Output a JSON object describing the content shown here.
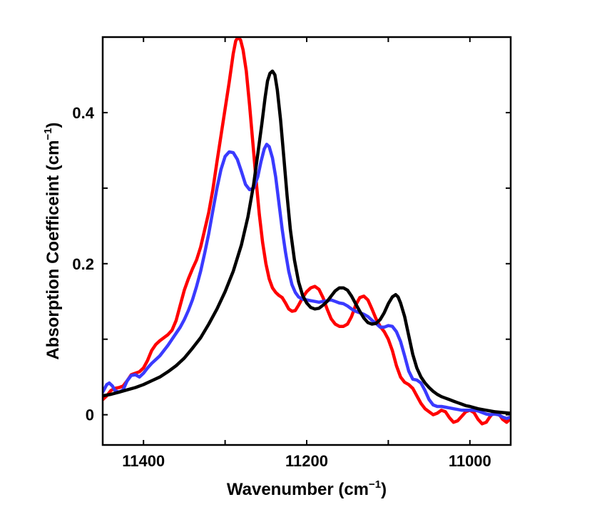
{
  "chart_data": {
    "type": "line",
    "xlabel": {
      "base": "Wavenumber (cm",
      "superscript": "−1",
      "suffix": ")"
    },
    "ylabel": {
      "base": "Absorption Coefficeint (cm",
      "superscript": "−1",
      "suffix": ")"
    },
    "xlim": [
      11450,
      10950
    ],
    "x_reversed": true,
    "ylim": [
      -0.04,
      0.5
    ],
    "xticks": [
      11400,
      11200,
      11000
    ],
    "xtick_labels": [
      "11400",
      "11200",
      "11000"
    ],
    "yticks": [
      0,
      0.2,
      0.4
    ],
    "ytick_labels": [
      "0",
      "0.2",
      "0.4"
    ],
    "minor_xticks": [
      11300,
      11100
    ],
    "minor_yticks": [
      0.1,
      0.3
    ],
    "grid": false,
    "legend": "none",
    "series": [
      {
        "name": "red",
        "color": "#ff0000",
        "points": [
          [
            11450,
            0.02
          ],
          [
            11445,
            0.025
          ],
          [
            11440,
            0.032
          ],
          [
            11435,
            0.035
          ],
          [
            11430,
            0.036
          ],
          [
            11425,
            0.038
          ],
          [
            11420,
            0.045
          ],
          [
            11415,
            0.053
          ],
          [
            11410,
            0.055
          ],
          [
            11405,
            0.057
          ],
          [
            11400,
            0.062
          ],
          [
            11395,
            0.072
          ],
          [
            11390,
            0.085
          ],
          [
            11385,
            0.093
          ],
          [
            11380,
            0.098
          ],
          [
            11375,
            0.102
          ],
          [
            11370,
            0.106
          ],
          [
            11365,
            0.112
          ],
          [
            11360,
            0.125
          ],
          [
            11355,
            0.145
          ],
          [
            11350,
            0.165
          ],
          [
            11345,
            0.18
          ],
          [
            11340,
            0.193
          ],
          [
            11335,
            0.205
          ],
          [
            11330,
            0.222
          ],
          [
            11325,
            0.245
          ],
          [
            11320,
            0.268
          ],
          [
            11315,
            0.298
          ],
          [
            11310,
            0.335
          ],
          [
            11305,
            0.37
          ],
          [
            11300,
            0.405
          ],
          [
            11295,
            0.44
          ],
          [
            11290,
            0.478
          ],
          [
            11287,
            0.495
          ],
          [
            11284,
            0.5
          ],
          [
            11281,
            0.496
          ],
          [
            11278,
            0.483
          ],
          [
            11274,
            0.455
          ],
          [
            11270,
            0.41
          ],
          [
            11266,
            0.36
          ],
          [
            11262,
            0.31
          ],
          [
            11258,
            0.265
          ],
          [
            11254,
            0.228
          ],
          [
            11250,
            0.2
          ],
          [
            11246,
            0.18
          ],
          [
            11242,
            0.168
          ],
          [
            11238,
            0.162
          ],
          [
            11234,
            0.158
          ],
          [
            11230,
            0.155
          ],
          [
            11226,
            0.148
          ],
          [
            11222,
            0.14
          ],
          [
            11218,
            0.137
          ],
          [
            11214,
            0.138
          ],
          [
            11210,
            0.145
          ],
          [
            11205,
            0.155
          ],
          [
            11200,
            0.163
          ],
          [
            11195,
            0.168
          ],
          [
            11190,
            0.17
          ],
          [
            11185,
            0.166
          ],
          [
            11180,
            0.155
          ],
          [
            11175,
            0.14
          ],
          [
            11170,
            0.127
          ],
          [
            11165,
            0.12
          ],
          [
            11160,
            0.117
          ],
          [
            11155,
            0.117
          ],
          [
            11150,
            0.12
          ],
          [
            11145,
            0.13
          ],
          [
            11140,
            0.145
          ],
          [
            11135,
            0.155
          ],
          [
            11130,
            0.157
          ],
          [
            11125,
            0.152
          ],
          [
            11120,
            0.14
          ],
          [
            11115,
            0.127
          ],
          [
            11110,
            0.117
          ],
          [
            11105,
            0.11
          ],
          [
            11100,
            0.1
          ],
          [
            11095,
            0.085
          ],
          [
            11090,
            0.065
          ],
          [
            11085,
            0.05
          ],
          [
            11080,
            0.043
          ],
          [
            11075,
            0.04
          ],
          [
            11070,
            0.035
          ],
          [
            11065,
            0.025
          ],
          [
            11060,
            0.015
          ],
          [
            11055,
            0.008
          ],
          [
            11050,
            0.004
          ],
          [
            11045,
            0.0
          ],
          [
            11040,
            0.002
          ],
          [
            11035,
            0.006
          ],
          [
            11030,
            0.004
          ],
          [
            11025,
            -0.004
          ],
          [
            11020,
            -0.01
          ],
          [
            11015,
            -0.008
          ],
          [
            11010,
            -0.002
          ],
          [
            11005,
            0.004
          ],
          [
            11000,
            0.006
          ],
          [
            10995,
            0.003
          ],
          [
            10990,
            -0.006
          ],
          [
            10985,
            -0.012
          ],
          [
            10980,
            -0.01
          ],
          [
            10975,
            -0.002
          ],
          [
            10970,
            0.004
          ],
          [
            10965,
            0.002
          ],
          [
            10960,
            -0.006
          ],
          [
            10955,
            -0.01
          ],
          [
            10950,
            -0.005
          ]
        ]
      },
      {
        "name": "blue",
        "color": "#3a3aff",
        "points": [
          [
            11450,
            0.03
          ],
          [
            11445,
            0.04
          ],
          [
            11442,
            0.042
          ],
          [
            11438,
            0.038
          ],
          [
            11435,
            0.032
          ],
          [
            11430,
            0.03
          ],
          [
            11425,
            0.033
          ],
          [
            11420,
            0.045
          ],
          [
            11415,
            0.052
          ],
          [
            11410,
            0.053
          ],
          [
            11405,
            0.05
          ],
          [
            11400,
            0.055
          ],
          [
            11395,
            0.062
          ],
          [
            11390,
            0.068
          ],
          [
            11385,
            0.073
          ],
          [
            11380,
            0.078
          ],
          [
            11375,
            0.085
          ],
          [
            11370,
            0.092
          ],
          [
            11365,
            0.1
          ],
          [
            11360,
            0.108
          ],
          [
            11355,
            0.116
          ],
          [
            11350,
            0.126
          ],
          [
            11345,
            0.138
          ],
          [
            11340,
            0.152
          ],
          [
            11335,
            0.17
          ],
          [
            11330,
            0.19
          ],
          [
            11325,
            0.214
          ],
          [
            11320,
            0.24
          ],
          [
            11315,
            0.27
          ],
          [
            11310,
            0.3
          ],
          [
            11305,
            0.325
          ],
          [
            11300,
            0.342
          ],
          [
            11295,
            0.348
          ],
          [
            11290,
            0.347
          ],
          [
            11285,
            0.338
          ],
          [
            11280,
            0.322
          ],
          [
            11275,
            0.305
          ],
          [
            11270,
            0.298
          ],
          [
            11265,
            0.3
          ],
          [
            11260,
            0.315
          ],
          [
            11256,
            0.335
          ],
          [
            11252,
            0.352
          ],
          [
            11249,
            0.358
          ],
          [
            11246,
            0.355
          ],
          [
            11242,
            0.34
          ],
          [
            11238,
            0.315
          ],
          [
            11234,
            0.28
          ],
          [
            11230,
            0.245
          ],
          [
            11226,
            0.215
          ],
          [
            11222,
            0.19
          ],
          [
            11218,
            0.172
          ],
          [
            11214,
            0.162
          ],
          [
            11210,
            0.156
          ],
          [
            11205,
            0.153
          ],
          [
            11200,
            0.152
          ],
          [
            11195,
            0.151
          ],
          [
            11190,
            0.15
          ],
          [
            11185,
            0.149
          ],
          [
            11180,
            0.15
          ],
          [
            11175,
            0.151
          ],
          [
            11170,
            0.152
          ],
          [
            11165,
            0.15
          ],
          [
            11160,
            0.148
          ],
          [
            11155,
            0.147
          ],
          [
            11150,
            0.144
          ],
          [
            11145,
            0.14
          ],
          [
            11140,
            0.137
          ],
          [
            11135,
            0.135
          ],
          [
            11130,
            0.133
          ],
          [
            11125,
            0.13
          ],
          [
            11120,
            0.125
          ],
          [
            11115,
            0.121
          ],
          [
            11110,
            0.116
          ],
          [
            11105,
            0.116
          ],
          [
            11100,
            0.118
          ],
          [
            11095,
            0.117
          ],
          [
            11090,
            0.11
          ],
          [
            11085,
            0.097
          ],
          [
            11080,
            0.078
          ],
          [
            11075,
            0.058
          ],
          [
            11070,
            0.047
          ],
          [
            11065,
            0.046
          ],
          [
            11060,
            0.042
          ],
          [
            11055,
            0.032
          ],
          [
            11050,
            0.02
          ],
          [
            11045,
            0.013
          ],
          [
            11040,
            0.011
          ],
          [
            11035,
            0.011
          ],
          [
            11030,
            0.01
          ],
          [
            11025,
            0.009
          ],
          [
            11020,
            0.008
          ],
          [
            11015,
            0.007
          ],
          [
            11010,
            0.006
          ],
          [
            11005,
            0.006
          ],
          [
            11000,
            0.006
          ],
          [
            10995,
            0.006
          ],
          [
            10990,
            0.005
          ],
          [
            10985,
            0.003
          ],
          [
            10980,
            0.001
          ],
          [
            10975,
            0.0
          ],
          [
            10970,
            0.001
          ],
          [
            10965,
            0.0
          ],
          [
            10960,
            -0.003
          ],
          [
            10955,
            -0.005
          ],
          [
            10950,
            -0.003
          ]
        ]
      },
      {
        "name": "black",
        "color": "#000000",
        "points": [
          [
            11450,
            0.025
          ],
          [
            11440,
            0.027
          ],
          [
            11430,
            0.03
          ],
          [
            11420,
            0.033
          ],
          [
            11410,
            0.036
          ],
          [
            11400,
            0.04
          ],
          [
            11390,
            0.045
          ],
          [
            11380,
            0.05
          ],
          [
            11370,
            0.057
          ],
          [
            11360,
            0.065
          ],
          [
            11350,
            0.075
          ],
          [
            11340,
            0.088
          ],
          [
            11330,
            0.102
          ],
          [
            11320,
            0.12
          ],
          [
            11310,
            0.14
          ],
          [
            11300,
            0.163
          ],
          [
            11290,
            0.19
          ],
          [
            11280,
            0.225
          ],
          [
            11272,
            0.262
          ],
          [
            11265,
            0.305
          ],
          [
            11260,
            0.345
          ],
          [
            11255,
            0.385
          ],
          [
            11251,
            0.42
          ],
          [
            11248,
            0.442
          ],
          [
            11245,
            0.452
          ],
          [
            11242,
            0.455
          ],
          [
            11239,
            0.45
          ],
          [
            11236,
            0.43
          ],
          [
            11232,
            0.39
          ],
          [
            11228,
            0.34
          ],
          [
            11224,
            0.29
          ],
          [
            11220,
            0.245
          ],
          [
            11215,
            0.205
          ],
          [
            11210,
            0.176
          ],
          [
            11205,
            0.158
          ],
          [
            11200,
            0.148
          ],
          [
            11195,
            0.142
          ],
          [
            11190,
            0.14
          ],
          [
            11185,
            0.141
          ],
          [
            11180,
            0.145
          ],
          [
            11175,
            0.15
          ],
          [
            11170,
            0.157
          ],
          [
            11165,
            0.164
          ],
          [
            11160,
            0.168
          ],
          [
            11155,
            0.168
          ],
          [
            11150,
            0.165
          ],
          [
            11145,
            0.157
          ],
          [
            11140,
            0.147
          ],
          [
            11135,
            0.137
          ],
          [
            11130,
            0.128
          ],
          [
            11125,
            0.122
          ],
          [
            11120,
            0.12
          ],
          [
            11115,
            0.121
          ],
          [
            11110,
            0.126
          ],
          [
            11105,
            0.135
          ],
          [
            11100,
            0.147
          ],
          [
            11095,
            0.156
          ],
          [
            11091,
            0.159
          ],
          [
            11088,
            0.156
          ],
          [
            11085,
            0.148
          ],
          [
            11080,
            0.13
          ],
          [
            11075,
            0.105
          ],
          [
            11070,
            0.08
          ],
          [
            11065,
            0.062
          ],
          [
            11060,
            0.05
          ],
          [
            11055,
            0.042
          ],
          [
            11050,
            0.036
          ],
          [
            11045,
            0.031
          ],
          [
            11040,
            0.027
          ],
          [
            11035,
            0.024
          ],
          [
            11030,
            0.022
          ],
          [
            11025,
            0.02
          ],
          [
            11020,
            0.018
          ],
          [
            11015,
            0.016
          ],
          [
            11010,
            0.014
          ],
          [
            11005,
            0.012
          ],
          [
            11000,
            0.011
          ],
          [
            10990,
            0.008
          ],
          [
            10980,
            0.006
          ],
          [
            10970,
            0.004
          ],
          [
            10960,
            0.003
          ],
          [
            10950,
            0.002
          ]
        ]
      }
    ]
  }
}
